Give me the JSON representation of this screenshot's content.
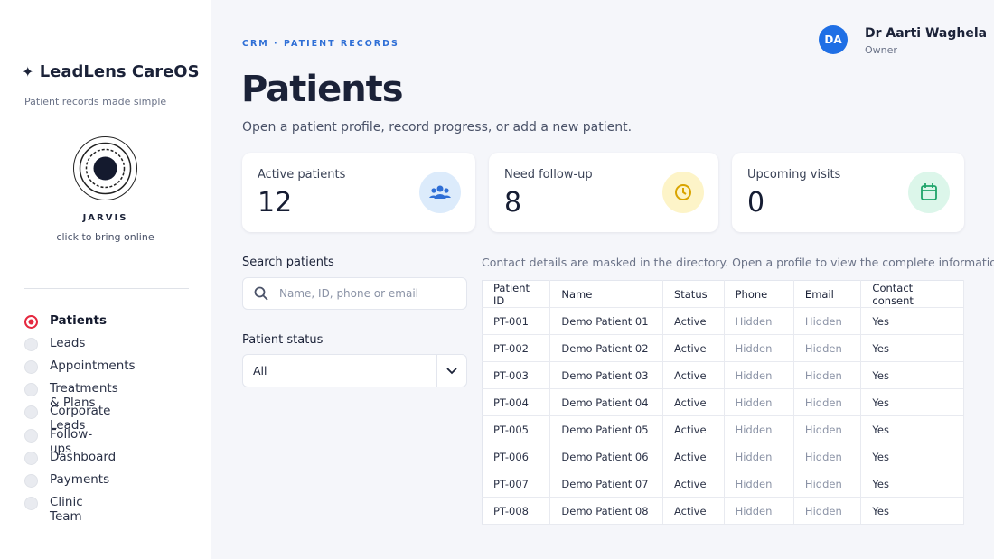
{
  "sidebar": {
    "brand": "LeadLens CareOS",
    "tagline": "Patient records made simple",
    "assistant": {
      "name": "JARVIS",
      "hint": "click to bring online"
    },
    "nav": [
      "Patients",
      "Leads",
      "Appointments",
      "Treatments & Plans",
      "Corporate Leads",
      "Follow-ups",
      "Dashboard",
      "Payments",
      "Clinic Team"
    ]
  },
  "header": {
    "breadcrumb": "CRM · PATIENT RECORDS",
    "title": "Patients",
    "subtitle": "Open a patient profile, record progress, or add a new patient.",
    "user": {
      "initials": "DA",
      "name": "Dr Aarti Waghela",
      "role": "Owner"
    }
  },
  "stats": [
    {
      "label": "Active patients",
      "value": 12
    },
    {
      "label": "Need follow-up",
      "value": 8
    },
    {
      "label": "Upcoming visits",
      "value": 0
    }
  ],
  "filters": {
    "search_label": "Search patients",
    "search_placeholder": "Name, ID, phone or email",
    "status_label": "Patient status",
    "status_value": "All"
  },
  "table": {
    "note": "Contact details are masked in the directory. Open a profile to view the complete information.",
    "columns": [
      "Patient ID",
      "Name",
      "Status",
      "Phone",
      "Email",
      "Contact consent"
    ],
    "rows": [
      [
        "PT-001",
        "Demo Patient 01",
        "Active",
        "Hidden",
        "Hidden",
        "Yes"
      ],
      [
        "PT-002",
        "Demo Patient 02",
        "Active",
        "Hidden",
        "Hidden",
        "Yes"
      ],
      [
        "PT-003",
        "Demo Patient 03",
        "Active",
        "Hidden",
        "Hidden",
        "Yes"
      ],
      [
        "PT-004",
        "Demo Patient 04",
        "Active",
        "Hidden",
        "Hidden",
        "Yes"
      ],
      [
        "PT-005",
        "Demo Patient 05",
        "Active",
        "Hidden",
        "Hidden",
        "Yes"
      ],
      [
        "PT-006",
        "Demo Patient 06",
        "Active",
        "Hidden",
        "Hidden",
        "Yes"
      ],
      [
        "PT-007",
        "Demo Patient 07",
        "Active",
        "Hidden",
        "Hidden",
        "Yes"
      ],
      [
        "PT-008",
        "Demo Patient 08",
        "Active",
        "Hidden",
        "Hidden",
        "Yes"
      ]
    ]
  }
}
